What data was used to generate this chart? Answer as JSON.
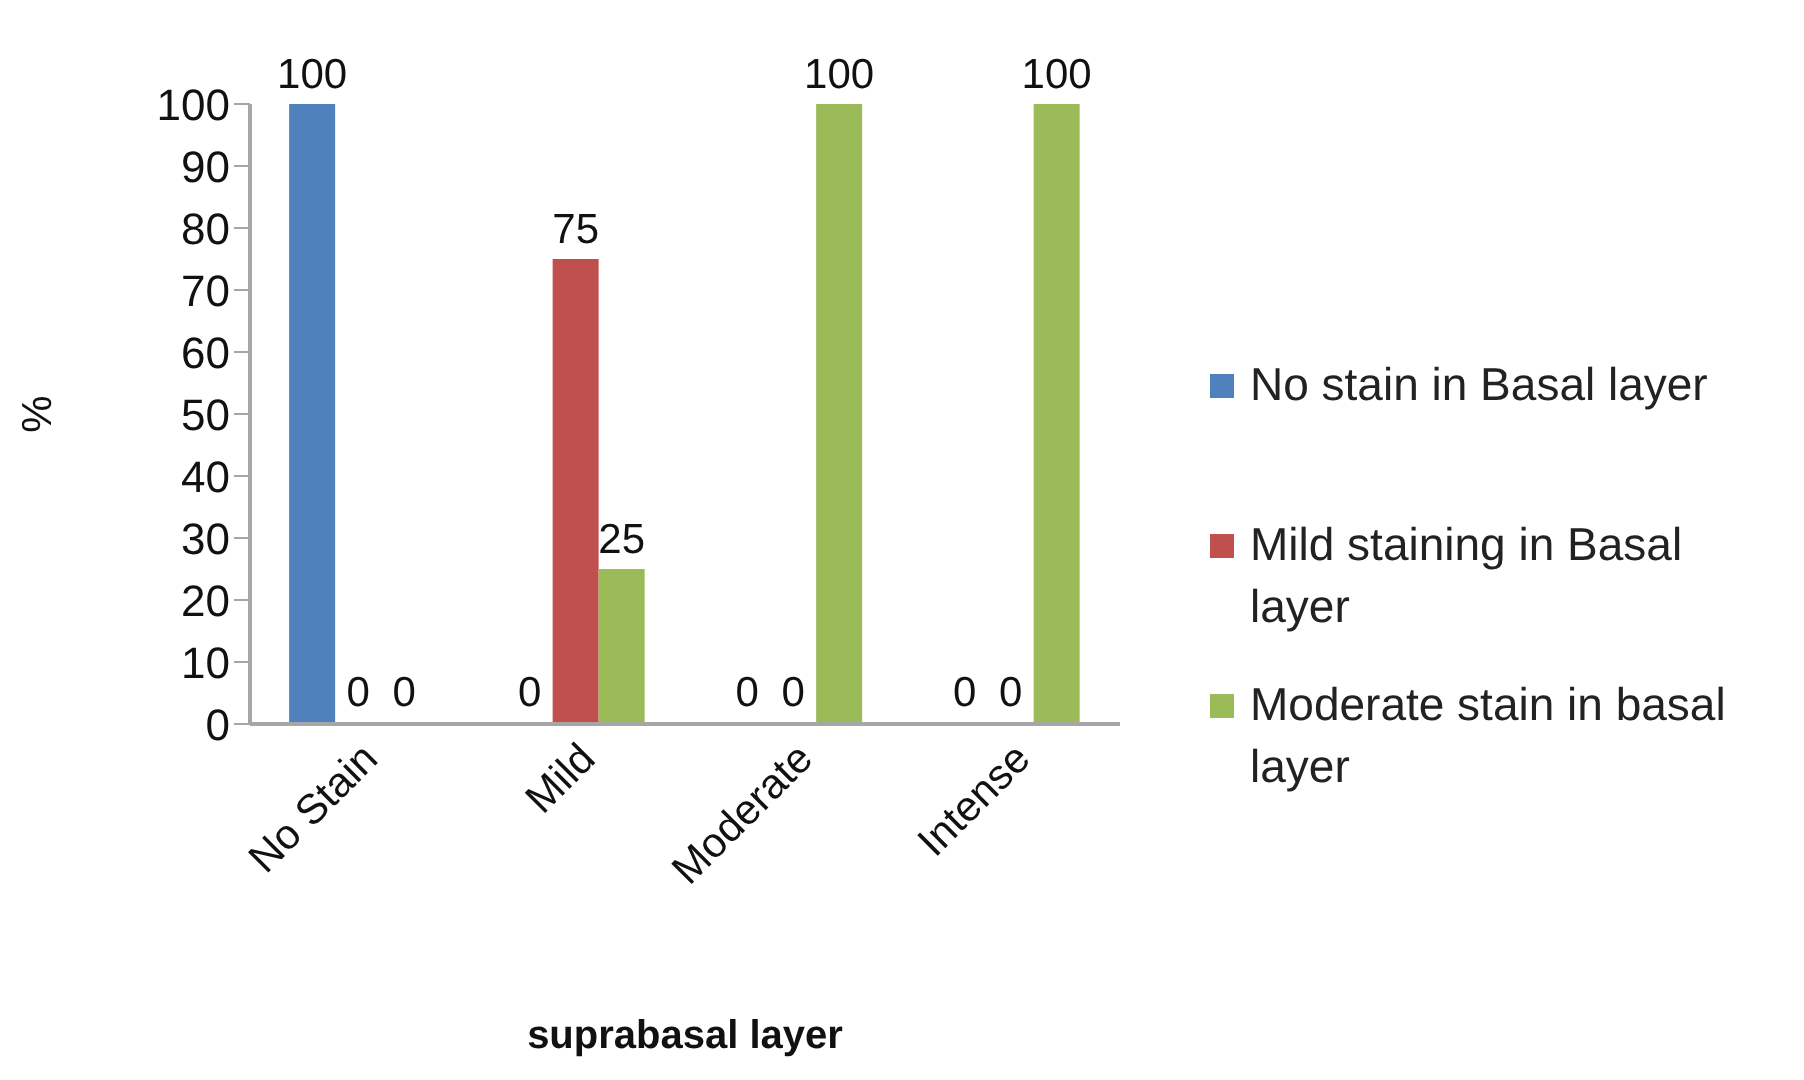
{
  "chart_data": {
    "type": "bar",
    "xlabel": "suprabasal layer",
    "ylabel": "%",
    "categories": [
      "No Stain",
      "Mild",
      "Moderate",
      "Intense"
    ],
    "series": [
      {
        "name": "No stain in Basal layer",
        "color": "#4f81bd",
        "values": [
          100,
          0,
          0,
          0
        ]
      },
      {
        "name": "Mild staining in Basal layer",
        "color": "#c0504d",
        "values": [
          0,
          75,
          0,
          0
        ]
      },
      {
        "name": "Moderate stain in basal layer",
        "color": "#9bbb59",
        "values": [
          0,
          25,
          100,
          100
        ]
      }
    ],
    "ylim": [
      0,
      100
    ],
    "yticks": [
      0,
      10,
      20,
      30,
      40,
      50,
      60,
      70,
      80,
      90,
      100
    ],
    "data_labels": true,
    "legend": "right",
    "grid": false
  }
}
